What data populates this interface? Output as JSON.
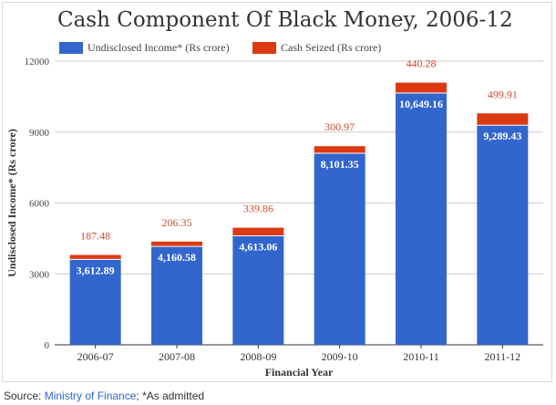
{
  "colors": {
    "income": "#3366cc",
    "cash": "#dc3912",
    "cash_label": "#d04a2a",
    "gridline": "#cccccc",
    "link": "#2a67c8"
  },
  "source": {
    "prefix": "Source: ",
    "link_text": "Ministry of Finance",
    "suffix": "; *As admitted"
  },
  "chart_data": {
    "type": "bar",
    "stacked": true,
    "title": "Cash Component Of Black Money, 2006-12",
    "xlabel": "Financial Year",
    "ylabel": "Undisclosed Income* (Rs crore)",
    "ylim": [
      0,
      12000
    ],
    "yticks": [
      "0",
      "3000",
      "6000",
      "9000",
      "12000"
    ],
    "ytick_values": [
      0,
      3000,
      6000,
      9000,
      12000
    ],
    "grid": true,
    "legend_position": "top-left",
    "categories": [
      "2006-07",
      "2007-08",
      "2008-09",
      "2009-10",
      "2010-11",
      "2011-12"
    ],
    "series": [
      {
        "name": "Undisclosed Income* (Rs crore)",
        "values": [
          3612.89,
          4160.58,
          4613.06,
          8101.35,
          10649.16,
          9289.43
        ],
        "labels": [
          "3,612.89",
          "4,160.58",
          "4,613.06",
          "8,101.35",
          "10,649.16",
          "9,289.43"
        ]
      },
      {
        "name": "Cash Seized (Rs crore)",
        "values": [
          187.48,
          206.35,
          339.86,
          300.97,
          440.28,
          499.91
        ],
        "labels": [
          "187.48",
          "206.35",
          "339.86",
          "300.97",
          "440.28",
          "499.91"
        ]
      }
    ]
  }
}
